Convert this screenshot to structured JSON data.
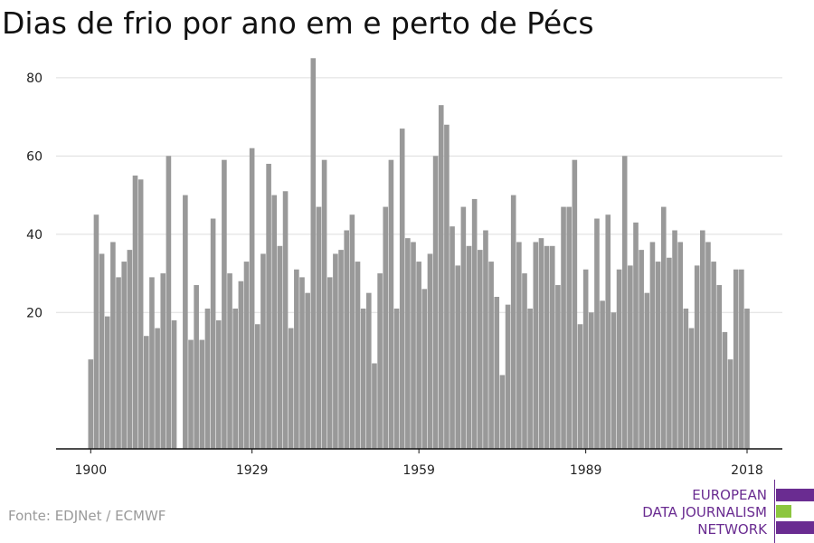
{
  "title": "Dias de frio por ano em e perto de Pécs",
  "source": "Fonte: EDJNet / ECMWF",
  "logo": {
    "lines": [
      "EUROPEAN",
      "DATA JOURNALISM",
      "NETWORK"
    ],
    "colors": {
      "purple": "#6a2c91",
      "green": "#8cc63f"
    }
  },
  "colors": {
    "bar": "#999999",
    "grid": "#dddddd",
    "axis": "#111111"
  },
  "chart_data": {
    "type": "bar",
    "xlabel": "",
    "ylabel": "",
    "ylim": [
      0,
      90
    ],
    "yticks": [
      20,
      40,
      60,
      80
    ],
    "xticks": [
      1900,
      1929,
      1959,
      1989,
      2018
    ],
    "grid": true,
    "x": [
      1900,
      1901,
      1902,
      1903,
      1904,
      1905,
      1906,
      1907,
      1908,
      1909,
      1910,
      1911,
      1912,
      1913,
      1914,
      1915,
      1916,
      1917,
      1918,
      1919,
      1920,
      1921,
      1922,
      1923,
      1924,
      1925,
      1926,
      1927,
      1928,
      1929,
      1930,
      1931,
      1932,
      1933,
      1934,
      1935,
      1936,
      1937,
      1938,
      1939,
      1940,
      1941,
      1942,
      1943,
      1944,
      1945,
      1946,
      1947,
      1948,
      1949,
      1950,
      1951,
      1952,
      1953,
      1954,
      1955,
      1956,
      1957,
      1958,
      1959,
      1960,
      1961,
      1962,
      1963,
      1964,
      1965,
      1966,
      1967,
      1968,
      1969,
      1970,
      1971,
      1972,
      1973,
      1974,
      1975,
      1976,
      1977,
      1978,
      1979,
      1980,
      1981,
      1982,
      1983,
      1984,
      1985,
      1986,
      1987,
      1988,
      1989,
      1990,
      1991,
      1992,
      1993,
      1994,
      1995,
      1996,
      1997,
      1998,
      1999,
      2000,
      2001,
      2002,
      2003,
      2004,
      2005,
      2006,
      2007,
      2008,
      2009,
      2010,
      2011,
      2012,
      2013,
      2014,
      2015,
      2016,
      2017,
      2018
    ],
    "series": [
      {
        "values": [
          8,
          45,
          35,
          19,
          38,
          29,
          33,
          36,
          55,
          54,
          14,
          29,
          16,
          30,
          60,
          18,
          0,
          50,
          13,
          27,
          13,
          21,
          44,
          18,
          59,
          30,
          21,
          28,
          33,
          62,
          17,
          35,
          58,
          50,
          37,
          51,
          16,
          31,
          29,
          25,
          85,
          47,
          59,
          29,
          35,
          36,
          41,
          45,
          33,
          21,
          25,
          7,
          30,
          47,
          59,
          21,
          67,
          39,
          38,
          33,
          26,
          35,
          60,
          73,
          68,
          42,
          32,
          47,
          37,
          49,
          36,
          41,
          33,
          24,
          4,
          22,
          50,
          38,
          30,
          21,
          38,
          39,
          37,
          37,
          27,
          47,
          47,
          59,
          17,
          31,
          20,
          44,
          23,
          45,
          20,
          31,
          60,
          32,
          43,
          36,
          25,
          38,
          33,
          47,
          34,
          41,
          38,
          21,
          16,
          32,
          41,
          38,
          33,
          27,
          15,
          8,
          31,
          31,
          21
        ]
      }
    ]
  }
}
